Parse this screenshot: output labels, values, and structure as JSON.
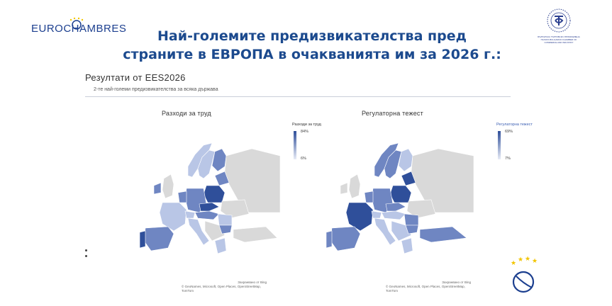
{
  "header": {
    "eurochambres_logo": "EUROCHAMBRES",
    "bg_logo_text": "БЪЛГАРСКА ТЪРГОВСКО-ПРОМИШЛЕНА ПАЛАТА BULGARIAN CHAMBER OF COMMERCE AND INDUSTRY",
    "title_line1": "Най-големите предизвикателства пред",
    "title_line2": "страните в ЕВРОПА в очакванията им за 2026 г.:"
  },
  "results": {
    "title": "Резултати от EES2026",
    "subtitle": "2-те най-големи предизвикателства за всяка държава"
  },
  "maps": [
    {
      "title": "Разходи за труд",
      "legend_title": "Разходи за труд",
      "legend_max": "84%",
      "legend_min": "6%",
      "credit_powered": "Захранвано от Bing",
      "credit_sources": "© GeoNames, Microsoft, Open Places, OpenStreetMap, TomTom"
    },
    {
      "title": "Регулаторна тежест",
      "legend_title": "Регулаторна тежест",
      "legend_max": "69%",
      "legend_min": "7%",
      "credit_powered": "Захранвано от Bing",
      "credit_sources": "© GeoNames, Microsoft, Open Places, OpenStreetMap, TomTom"
    }
  ],
  "colors": {
    "title_blue": "#1c4a8e",
    "dark_fill": "#2f4f9a",
    "mid_fill": "#6f86c2",
    "light_fill": "#b9c6e6",
    "no_data": "#d9d9d9"
  }
}
